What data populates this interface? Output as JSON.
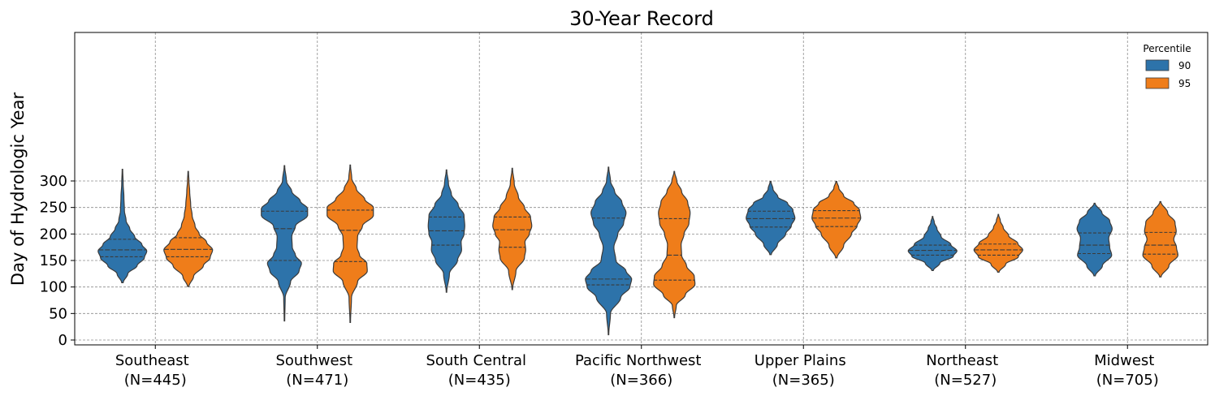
{
  "chart_data": {
    "type": "violin",
    "title": "30-Year Record",
    "xlabel": "",
    "ylabel": "Day of Hydrologic Year",
    "ylim": [
      -5,
      345
    ],
    "yticks": [
      0,
      50,
      100,
      150,
      200,
      250,
      300
    ],
    "grid": true,
    "legend": {
      "title": "Percentile",
      "placement": "top-right"
    },
    "categories": [
      {
        "name": "Southeast",
        "n_label": "(N=445)"
      },
      {
        "name": "Southwest",
        "n_label": "(N=471)"
      },
      {
        "name": "South Central",
        "n_label": "(N=435)"
      },
      {
        "name": "Pacific Northwest",
        "n_label": "(N=366)"
      },
      {
        "name": "Upper Plains",
        "n_label": "(N=365)"
      },
      {
        "name": "Northeast",
        "n_label": "(N=527)"
      },
      {
        "name": "Midwest",
        "n_label": "(N=705)"
      }
    ],
    "series": [
      {
        "name": "90",
        "color": "#2d73aa",
        "violins": [
          {
            "min": 108,
            "max": 322,
            "q1": 157,
            "median": 170,
            "q3": 190,
            "density": [
              [
                108,
                0.03
              ],
              [
                125,
                0.22
              ],
              [
                140,
                0.6
              ],
              [
                155,
                0.9
              ],
              [
                168,
                1.0
              ],
              [
                180,
                0.8
              ],
              [
                195,
                0.5
              ],
              [
                210,
                0.3
              ],
              [
                225,
                0.15
              ],
              [
                245,
                0.08
              ],
              [
                270,
                0.06
              ],
              [
                295,
                0.03
              ],
              [
                322,
                0.01
              ]
            ]
          },
          {
            "min": 36,
            "max": 329,
            "q1": 150,
            "median": 210,
            "q3": 243,
            "density": [
              [
                36,
                0.01
              ],
              [
                80,
                0.03
              ],
              [
                110,
                0.25
              ],
              [
                130,
                0.6
              ],
              [
                145,
                0.7
              ],
              [
                160,
                0.45
              ],
              [
                175,
                0.32
              ],
              [
                195,
                0.3
              ],
              [
                215,
                0.45
              ],
              [
                235,
                0.95
              ],
              [
                248,
                0.95
              ],
              [
                262,
                0.65
              ],
              [
                280,
                0.3
              ],
              [
                300,
                0.08
              ],
              [
                329,
                0.01
              ]
            ]
          },
          {
            "min": 90,
            "max": 321,
            "q1": 179,
            "median": 206,
            "q3": 232,
            "density": [
              [
                90,
                0.01
              ],
              [
                125,
                0.12
              ],
              [
                150,
                0.45
              ],
              [
                170,
                0.62
              ],
              [
                185,
                0.6
              ],
              [
                200,
                0.72
              ],
              [
                215,
                0.75
              ],
              [
                235,
                0.72
              ],
              [
                255,
                0.48
              ],
              [
                275,
                0.2
              ],
              [
                295,
                0.08
              ],
              [
                321,
                0.01
              ]
            ]
          },
          {
            "min": 10,
            "max": 326,
            "q1": 104,
            "median": 115,
            "q3": 230,
            "density": [
              [
                10,
                0.01
              ],
              [
                50,
                0.08
              ],
              [
                80,
                0.5
              ],
              [
                100,
                0.88
              ],
              [
                115,
                0.95
              ],
              [
                130,
                0.72
              ],
              [
                150,
                0.3
              ],
              [
                175,
                0.22
              ],
              [
                200,
                0.38
              ],
              [
                220,
                0.62
              ],
              [
                240,
                0.72
              ],
              [
                260,
                0.55
              ],
              [
                280,
                0.25
              ],
              [
                300,
                0.08
              ],
              [
                326,
                0.01
              ]
            ]
          },
          {
            "min": 161,
            "max": 299,
            "q1": 213,
            "median": 229,
            "q3": 243,
            "density": [
              [
                161,
                0.03
              ],
              [
                180,
                0.28
              ],
              [
                200,
                0.62
              ],
              [
                215,
                0.85
              ],
              [
                230,
                1.0
              ],
              [
                245,
                0.92
              ],
              [
                258,
                0.7
              ],
              [
                270,
                0.3
              ],
              [
                285,
                0.1
              ],
              [
                299,
                0.02
              ]
            ]
          },
          {
            "min": 131,
            "max": 233,
            "q1": 160,
            "median": 169,
            "q3": 179,
            "density": [
              [
                131,
                0.03
              ],
              [
                145,
                0.3
              ],
              [
                158,
                0.85
              ],
              [
                168,
                1.0
              ],
              [
                180,
                0.75
              ],
              [
                195,
                0.35
              ],
              [
                210,
                0.18
              ],
              [
                222,
                0.07
              ],
              [
                233,
                0.01
              ]
            ]
          },
          {
            "min": 121,
            "max": 258,
            "q1": 163,
            "median": 179,
            "q3": 202,
            "density": [
              [
                121,
                0.03
              ],
              [
                140,
                0.32
              ],
              [
                160,
                0.7
              ],
              [
                175,
                0.62
              ],
              [
                192,
                0.58
              ],
              [
                210,
                0.72
              ],
              [
                225,
                0.62
              ],
              [
                240,
                0.3
              ],
              [
                258,
                0.02
              ]
            ]
          }
        ]
      },
      {
        "name": "95",
        "color": "#ef7d1a",
        "violins": [
          {
            "min": 101,
            "max": 318,
            "q1": 157,
            "median": 171,
            "q3": 193,
            "density": [
              [
                101,
                0.03
              ],
              [
                120,
                0.22
              ],
              [
                140,
                0.62
              ],
              [
                155,
                0.9
              ],
              [
                170,
                1.0
              ],
              [
                185,
                0.75
              ],
              [
                200,
                0.45
              ],
              [
                215,
                0.28
              ],
              [
                235,
                0.16
              ],
              [
                255,
                0.1
              ],
              [
                280,
                0.06
              ],
              [
                300,
                0.03
              ],
              [
                318,
                0.01
              ]
            ]
          },
          {
            "min": 33,
            "max": 330,
            "q1": 148,
            "median": 207,
            "q3": 245,
            "density": [
              [
                33,
                0.01
              ],
              [
                80,
                0.05
              ],
              [
                110,
                0.3
              ],
              [
                130,
                0.7
              ],
              [
                145,
                0.68
              ],
              [
                160,
                0.38
              ],
              [
                175,
                0.28
              ],
              [
                195,
                0.3
              ],
              [
                215,
                0.5
              ],
              [
                235,
                0.95
              ],
              [
                250,
                0.95
              ],
              [
                265,
                0.6
              ],
              [
                285,
                0.25
              ],
              [
                305,
                0.06
              ],
              [
                330,
                0.01
              ]
            ]
          },
          {
            "min": 95,
            "max": 324,
            "q1": 175,
            "median": 208,
            "q3": 232,
            "density": [
              [
                95,
                0.01
              ],
              [
                130,
                0.15
              ],
              [
                155,
                0.5
              ],
              [
                170,
                0.55
              ],
              [
                185,
                0.52
              ],
              [
                200,
                0.7
              ],
              [
                215,
                0.8
              ],
              [
                232,
                0.75
              ],
              [
                250,
                0.5
              ],
              [
                270,
                0.25
              ],
              [
                295,
                0.08
              ],
              [
                324,
                0.01
              ]
            ]
          },
          {
            "min": 42,
            "max": 318,
            "q1": 113,
            "median": 160,
            "q3": 229,
            "density": [
              [
                42,
                0.01
              ],
              [
                65,
                0.08
              ],
              [
                85,
                0.45
              ],
              [
                105,
                0.85
              ],
              [
                120,
                0.82
              ],
              [
                140,
                0.5
              ],
              [
                160,
                0.3
              ],
              [
                180,
                0.28
              ],
              [
                200,
                0.4
              ],
              [
                220,
                0.6
              ],
              [
                240,
                0.65
              ],
              [
                260,
                0.55
              ],
              [
                280,
                0.3
              ],
              [
                300,
                0.1
              ],
              [
                318,
                0.01
              ]
            ]
          },
          {
            "min": 155,
            "max": 299,
            "q1": 214,
            "median": 230,
            "q3": 244,
            "density": [
              [
                155,
                0.03
              ],
              [
                178,
                0.3
              ],
              [
                200,
                0.62
              ],
              [
                215,
                0.85
              ],
              [
                230,
                1.0
              ],
              [
                245,
                0.95
              ],
              [
                258,
                0.72
              ],
              [
                272,
                0.3
              ],
              [
                287,
                0.1
              ],
              [
                299,
                0.02
              ]
            ]
          },
          {
            "min": 128,
            "max": 237,
            "q1": 160,
            "median": 170,
            "q3": 181,
            "density": [
              [
                128,
                0.03
              ],
              [
                143,
                0.3
              ],
              [
                157,
                0.82
              ],
              [
                170,
                1.0
              ],
              [
                182,
                0.8
              ],
              [
                197,
                0.42
              ],
              [
                212,
                0.2
              ],
              [
                225,
                0.08
              ],
              [
                237,
                0.01
              ]
            ]
          },
          {
            "min": 119,
            "max": 261,
            "q1": 162,
            "median": 179,
            "q3": 203,
            "density": [
              [
                119,
                0.03
              ],
              [
                140,
                0.35
              ],
              [
                160,
                0.72
              ],
              [
                175,
                0.66
              ],
              [
                190,
                0.55
              ],
              [
                205,
                0.65
              ],
              [
                222,
                0.6
              ],
              [
                240,
                0.3
              ],
              [
                261,
                0.02
              ]
            ]
          }
        ]
      }
    ]
  }
}
